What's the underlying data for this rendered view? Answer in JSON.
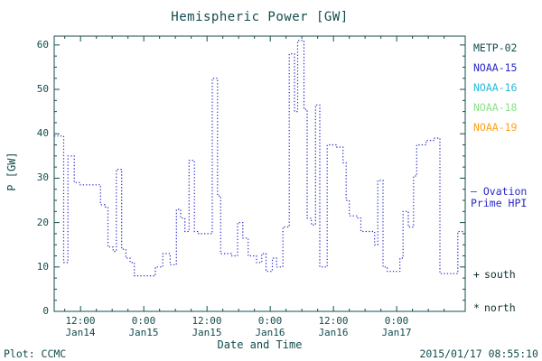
{
  "title": "Hemispheric Power [GW]",
  "footer": {
    "left": "Plot: CCMC",
    "right": "2015/01/17 08:55:10"
  },
  "legend": {
    "satellites": [
      {
        "label": "METP-02",
        "color": "#134c4c"
      },
      {
        "label": "NOAA-15",
        "color": "#2929c8"
      },
      {
        "label": "NOAA-16",
        "color": "#29b9d7"
      },
      {
        "label": "NOAA-18",
        "color": "#8ce08c"
      },
      {
        "label": "NOAA-19",
        "color": "#ff9f1f"
      }
    ],
    "ovation": {
      "marker": "–",
      "line1": "Ovation",
      "line2": "Prime HPI",
      "color": "#2929c8"
    },
    "markers": [
      {
        "symbol": "+",
        "label": "south"
      },
      {
        "symbol": "*",
        "label": "north"
      }
    ]
  },
  "chart_data": {
    "type": "line",
    "step": true,
    "line_style": "dotted",
    "line_color": "#2929c8",
    "title": "Hemispheric Power [GW]",
    "xlabel": "Date and Time",
    "ylabel": "P [GW]",
    "x_unit": "hours from 2015-01-14 00:00",
    "xlim_hours": [
      7,
      85
    ],
    "ylim": [
      0,
      62
    ],
    "grid": false,
    "yticks": [
      0,
      10,
      20,
      30,
      40,
      50,
      60
    ],
    "xticks": [
      {
        "t": 12,
        "time": "12:00",
        "date": "Jan14"
      },
      {
        "t": 24,
        "time": "0:00",
        "date": "Jan15"
      },
      {
        "t": 36,
        "time": "12:00",
        "date": "Jan15"
      },
      {
        "t": 48,
        "time": "0:00",
        "date": "Jan16"
      },
      {
        "t": 60,
        "time": "12:00",
        "date": "Jan16"
      },
      {
        "t": 72,
        "time": "0:00",
        "date": "Jan17"
      }
    ],
    "points": [
      [
        7.0,
        39.5
      ],
      [
        8.8,
        11
      ],
      [
        9.6,
        35
      ],
      [
        10.8,
        29
      ],
      [
        11.8,
        28.5
      ],
      [
        15.8,
        24
      ],
      [
        16.6,
        23.5
      ],
      [
        17.2,
        14.5
      ],
      [
        18.2,
        13.5
      ],
      [
        18.8,
        32
      ],
      [
        19.8,
        14
      ],
      [
        20.6,
        12
      ],
      [
        21.4,
        11
      ],
      [
        22.2,
        8
      ],
      [
        26.2,
        10
      ],
      [
        27.6,
        13
      ],
      [
        29.0,
        10.5
      ],
      [
        30.2,
        23
      ],
      [
        31.0,
        21
      ],
      [
        31.8,
        18
      ],
      [
        32.6,
        34
      ],
      [
        33.6,
        18
      ],
      [
        34.4,
        17.5
      ],
      [
        37.0,
        52.5
      ],
      [
        38.0,
        26
      ],
      [
        38.6,
        13
      ],
      [
        40.6,
        12.5
      ],
      [
        41.8,
        20
      ],
      [
        42.8,
        16.5
      ],
      [
        43.8,
        12.5
      ],
      [
        45.4,
        11
      ],
      [
        46.4,
        13
      ],
      [
        47.2,
        9
      ],
      [
        48.4,
        12
      ],
      [
        49.2,
        10
      ],
      [
        50.4,
        19
      ],
      [
        51.6,
        58
      ],
      [
        52.6,
        45
      ],
      [
        53.2,
        61
      ],
      [
        54.4,
        45.5
      ],
      [
        55.0,
        21
      ],
      [
        55.8,
        19.5
      ],
      [
        56.6,
        46.5
      ],
      [
        57.4,
        10
      ],
      [
        58.8,
        37.5
      ],
      [
        60.6,
        37
      ],
      [
        61.8,
        33.5
      ],
      [
        62.4,
        25
      ],
      [
        63.0,
        21.5
      ],
      [
        64.6,
        21
      ],
      [
        65.2,
        18
      ],
      [
        67.8,
        15
      ],
      [
        68.4,
        29.5
      ],
      [
        69.4,
        10
      ],
      [
        70.2,
        9
      ],
      [
        72.6,
        12
      ],
      [
        73.2,
        22.5
      ],
      [
        74.2,
        19
      ],
      [
        75.2,
        30.5
      ],
      [
        75.8,
        37.5
      ],
      [
        77.6,
        38.5
      ],
      [
        79.0,
        39
      ],
      [
        80.2,
        8.5
      ],
      [
        83.6,
        18
      ],
      [
        84.8,
        18
      ]
    ]
  }
}
